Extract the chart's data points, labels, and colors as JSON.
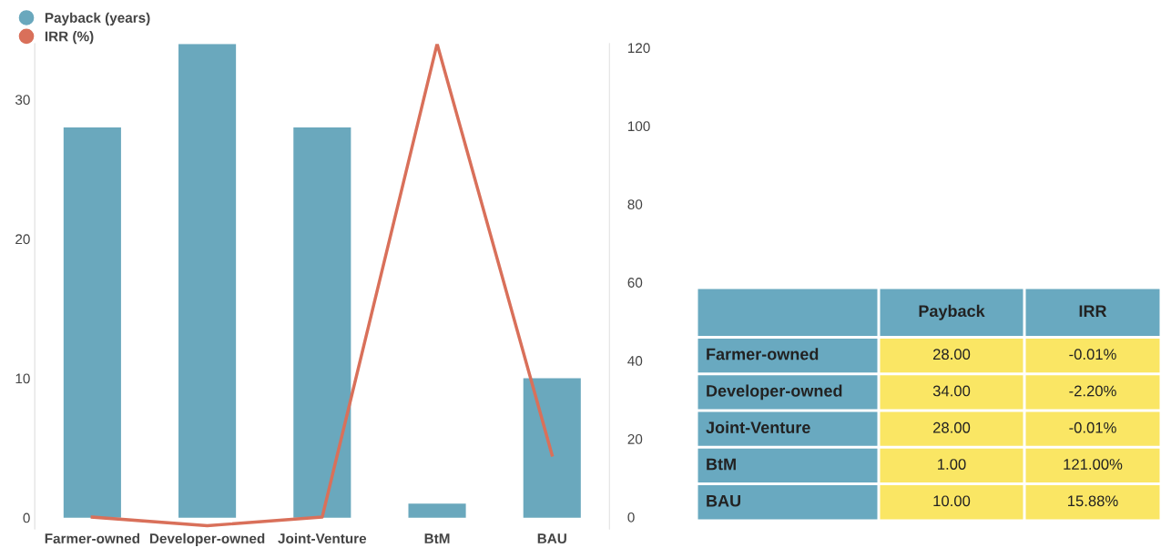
{
  "chart_data": {
    "type": "bar",
    "categories": [
      "Farmer-owned",
      "Developer-owned",
      "Joint-Venture",
      "BtM",
      "BAU"
    ],
    "series": [
      {
        "name": "Payback (years)",
        "color": "#6aa8bd",
        "values": [
          28,
          34,
          28,
          1,
          10
        ]
      },
      {
        "name": "IRR (%)",
        "type": "line",
        "axis": "y2",
        "color": "#d9705a",
        "values": [
          -0.01,
          -2.2,
          -0.01,
          121,
          15.88
        ]
      }
    ],
    "ylim": [
      -0.8,
      34
    ],
    "yticks": [
      0,
      10,
      20,
      30
    ],
    "y2lim": [
      -3,
      121
    ],
    "y2ticks": [
      0,
      20,
      40,
      60,
      80,
      100,
      120
    ],
    "annotations": [
      "Payback",
      "IRR",
      "28.00",
      "-0.01%",
      "34.00",
      "-2.20%",
      "28.00",
      "-0.01%",
      "1.00",
      "121.00%",
      "10.00",
      "15.88%"
    ],
    "legend": "top left",
    "grid": false,
    "marker": "none"
  }
}
